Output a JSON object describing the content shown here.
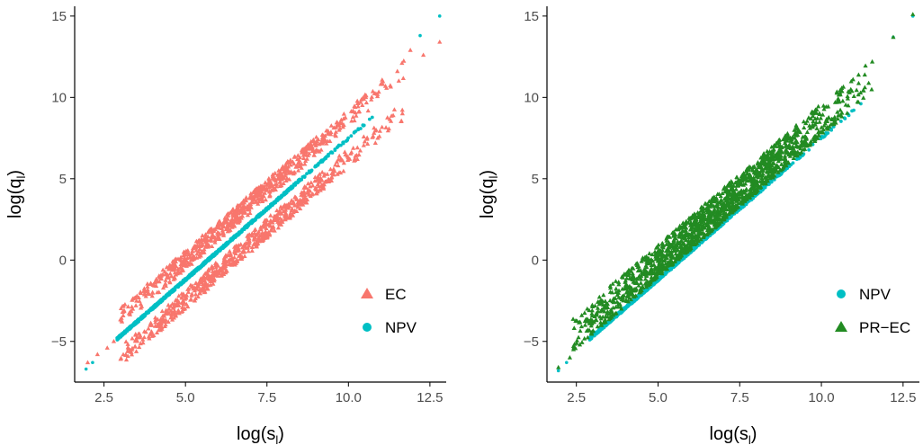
{
  "colors": {
    "EC": "#F8766D",
    "NPV": "#00BFC4",
    "PR-EC": "#228B22",
    "axis": "#000000",
    "tick_label": "#4d4d4d"
  },
  "chart_data": [
    {
      "type": "scatter",
      "xlabel": "log(s",
      "xlabel_sub": "l",
      "ylabel": "log(q",
      "ylabel_sub": "l",
      "xlim": [
        1.6,
        13.0
      ],
      "ylim": [
        -7.5,
        15.6
      ],
      "xticks": [
        2.5,
        5.0,
        7.5,
        10.0,
        12.5
      ],
      "xtick_labels": [
        "2.5",
        "5.0",
        "7.5",
        "10.0",
        "12.5"
      ],
      "yticks": [
        -5,
        0,
        5,
        10,
        15
      ],
      "ytick_labels": [
        "−5",
        "0",
        "5",
        "10",
        "15"
      ],
      "legend_position": "bottom-right",
      "legend": [
        {
          "label": "EC",
          "shape": "triangle",
          "color": "#F8766D"
        },
        {
          "label": "NPV",
          "shape": "circle",
          "color": "#00BFC4"
        }
      ],
      "series": [
        {
          "name": "EC",
          "shape": "triangle",
          "color": "#F8766D",
          "x_range": [
            1.9,
            12.8
          ],
          "slope": 1.74,
          "intercept": -9.9,
          "band_near": 0.6,
          "band_far": 1.8,
          "band_start_x": 3.0,
          "band_end_x": 11.8,
          "points": [
            [
              2.0,
              -6.3
            ],
            [
              2.3,
              -5.8
            ],
            [
              2.6,
              -5.4
            ],
            [
              2.8,
              -5.0
            ],
            [
              12.8,
              13.4
            ],
            [
              12.3,
              12.6
            ],
            [
              11.9,
              12.9
            ]
          ]
        },
        {
          "name": "NPV",
          "shape": "circle",
          "color": "#00BFC4",
          "x_range": [
            1.9,
            12.8
          ],
          "slope": 1.74,
          "intercept": -9.9,
          "points": [
            [
              1.95,
              -6.7
            ],
            [
              2.15,
              -6.3
            ],
            [
              12.2,
              13.8
            ],
            [
              12.8,
              15.0
            ]
          ]
        }
      ]
    },
    {
      "type": "scatter",
      "xlabel": "log(s",
      "xlabel_sub": "l",
      "ylabel": "log(q",
      "ylabel_sub": "l",
      "xlim": [
        1.6,
        13.0
      ],
      "ylim": [
        -7.5,
        15.6
      ],
      "xticks": [
        2.5,
        5.0,
        7.5,
        10.0,
        12.5
      ],
      "xtick_labels": [
        "2.5",
        "5.0",
        "7.5",
        "10.0",
        "12.5"
      ],
      "yticks": [
        -5,
        0,
        5,
        10,
        15
      ],
      "ytick_labels": [
        "−5",
        "0",
        "5",
        "10",
        "15"
      ],
      "legend_position": "bottom-right",
      "legend": [
        {
          "label": "NPV",
          "shape": "circle",
          "color": "#00BFC4"
        },
        {
          "label": "PR−EC",
          "shape": "triangle",
          "color": "#228B22"
        }
      ],
      "series": [
        {
          "name": "NPV",
          "shape": "circle",
          "color": "#00BFC4",
          "x_range": [
            1.9,
            12.8
          ],
          "slope": 1.74,
          "intercept": -9.9,
          "points": [
            [
              1.95,
              -6.8
            ],
            [
              2.2,
              -6.3
            ],
            [
              12.2,
              13.7
            ],
            [
              12.8,
              15.0
            ]
          ]
        },
        {
          "name": "PR−EC",
          "shape": "triangle",
          "color": "#228B22",
          "x_range": [
            1.9,
            12.8
          ],
          "slope": 1.74,
          "intercept": -9.9,
          "band_near": 0.0,
          "band_far": 2.0,
          "band_start_x": 2.4,
          "band_end_x": 11.6,
          "points": [
            [
              1.95,
              -6.6
            ],
            [
              2.3,
              -6.0
            ],
            [
              12.2,
              13.7
            ],
            [
              12.8,
              15.1
            ]
          ]
        }
      ]
    }
  ]
}
